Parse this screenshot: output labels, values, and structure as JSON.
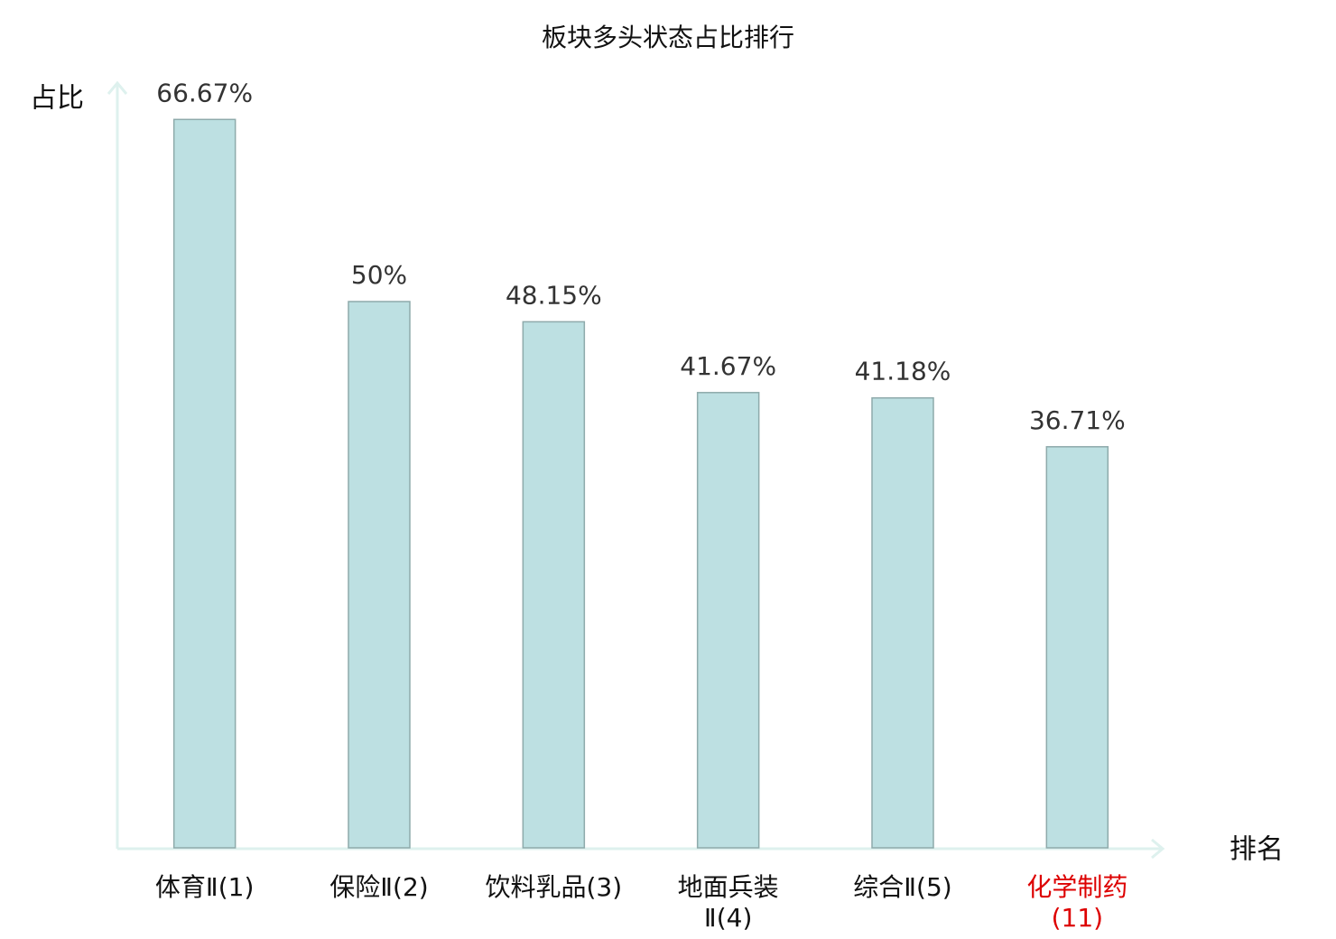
{
  "chart_data": {
    "type": "bar",
    "title": "板块多头状态占比排行",
    "y_label": "占比",
    "x_label": "排名",
    "categories": [
      "体育Ⅱ(1)",
      "保险Ⅱ(2)",
      "饮料乳品(3)",
      "地面兵装Ⅱ(4)",
      "综合Ⅱ(5)",
      "化学制药(11)"
    ],
    "values": [
      66.67,
      50,
      48.15,
      41.67,
      41.18,
      36.71
    ],
    "value_labels": [
      "66.67%",
      "50%",
      "48.15%",
      "41.67%",
      "41.18%",
      "36.71%"
    ],
    "color": "#bde0e2",
    "label_colors": [
      "#111111",
      "#111111",
      "#111111",
      "#111111",
      "#111111",
      "#dd0000"
    ],
    "ylim": [
      0,
      70
    ]
  }
}
